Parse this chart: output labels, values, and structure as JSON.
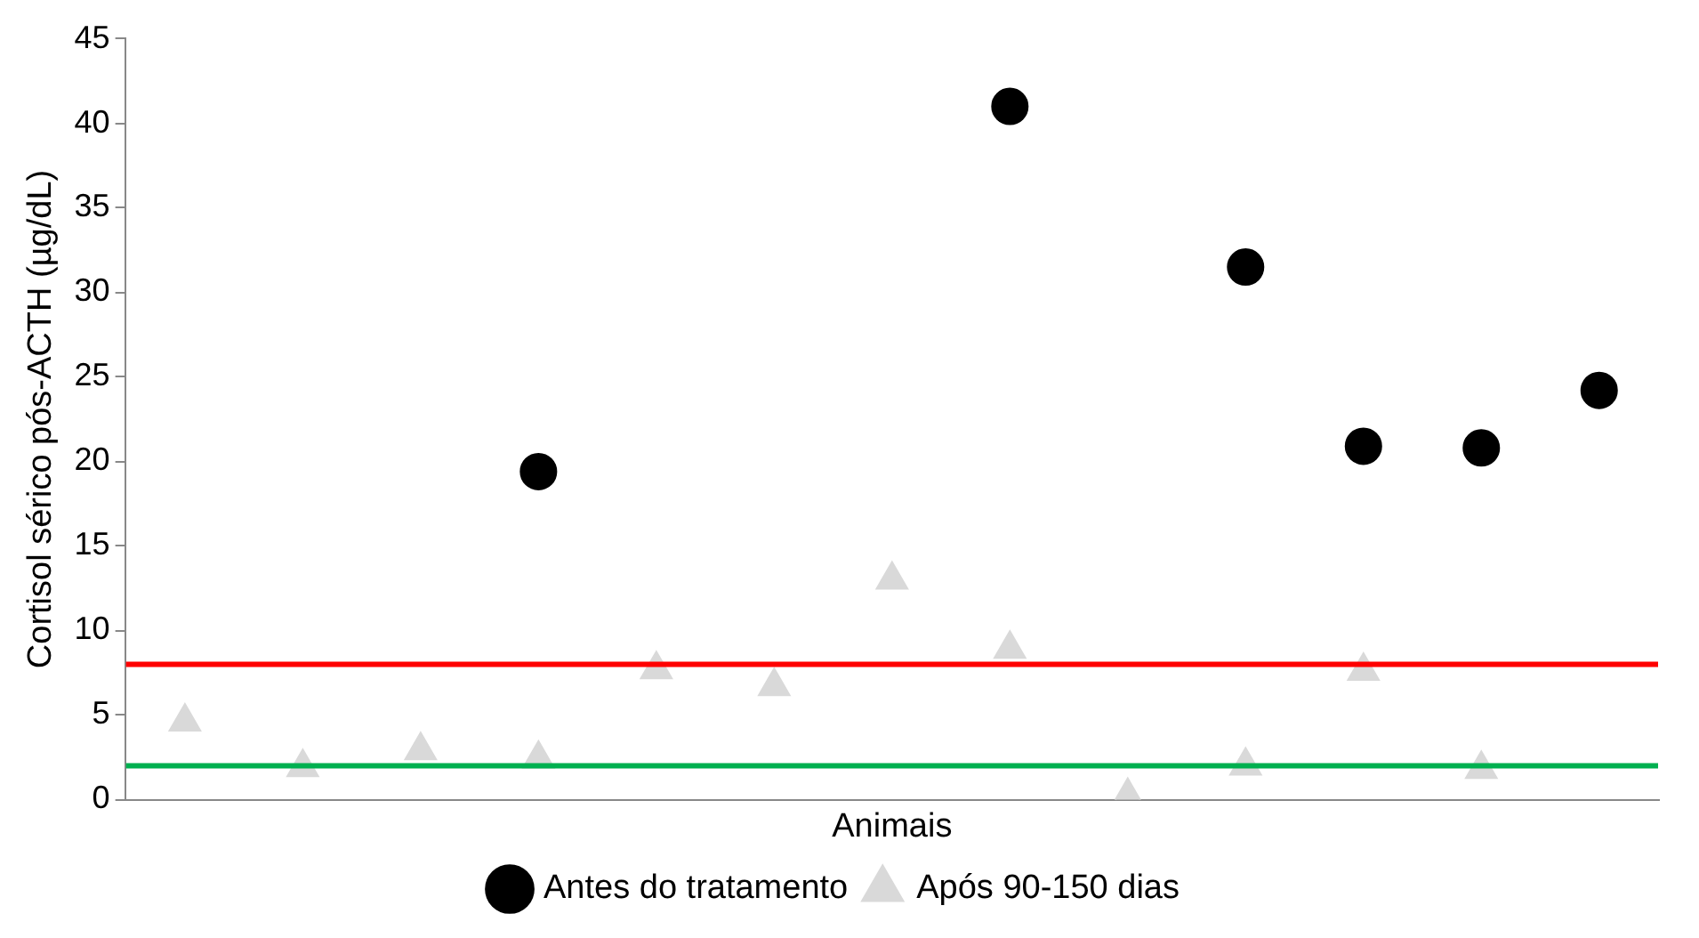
{
  "chart_data": {
    "type": "scatter",
    "xlabel": "Animais",
    "ylabel": "Cortisol sérico pós-ACTH (µg/dL)",
    "categories": [
      null,
      null,
      null,
      null,
      null,
      null,
      null,
      null,
      null,
      null,
      null,
      null,
      null
    ],
    "ylim": [
      0,
      45
    ],
    "yticks": [
      0,
      5,
      10,
      15,
      20,
      25,
      30,
      35,
      40,
      45
    ],
    "tick_labels": "y",
    "grid": false,
    "legend": "bottom",
    "series": [
      {
        "name": "Antes do tratamento",
        "color": "#000000",
        "marker": "circle",
        "values": [
          null,
          null,
          null,
          19.4,
          null,
          null,
          null,
          41.0,
          null,
          31.5,
          20.9,
          20.8,
          24.2
        ]
      },
      {
        "name": "Após 90-150 dias",
        "color": "#d9d9d9",
        "marker": "triangle",
        "values": [
          4.6,
          1.9,
          2.9,
          2.4,
          7.7,
          6.7,
          13.0,
          8.9,
          0.2,
          2.0,
          7.6,
          1.8,
          null
        ]
      }
    ],
    "ref_lines": [
      {
        "axis": "y",
        "value": 8,
        "color": "#ff0000"
      },
      {
        "axis": "y",
        "value": 2,
        "color": "#00b050"
      }
    ]
  }
}
